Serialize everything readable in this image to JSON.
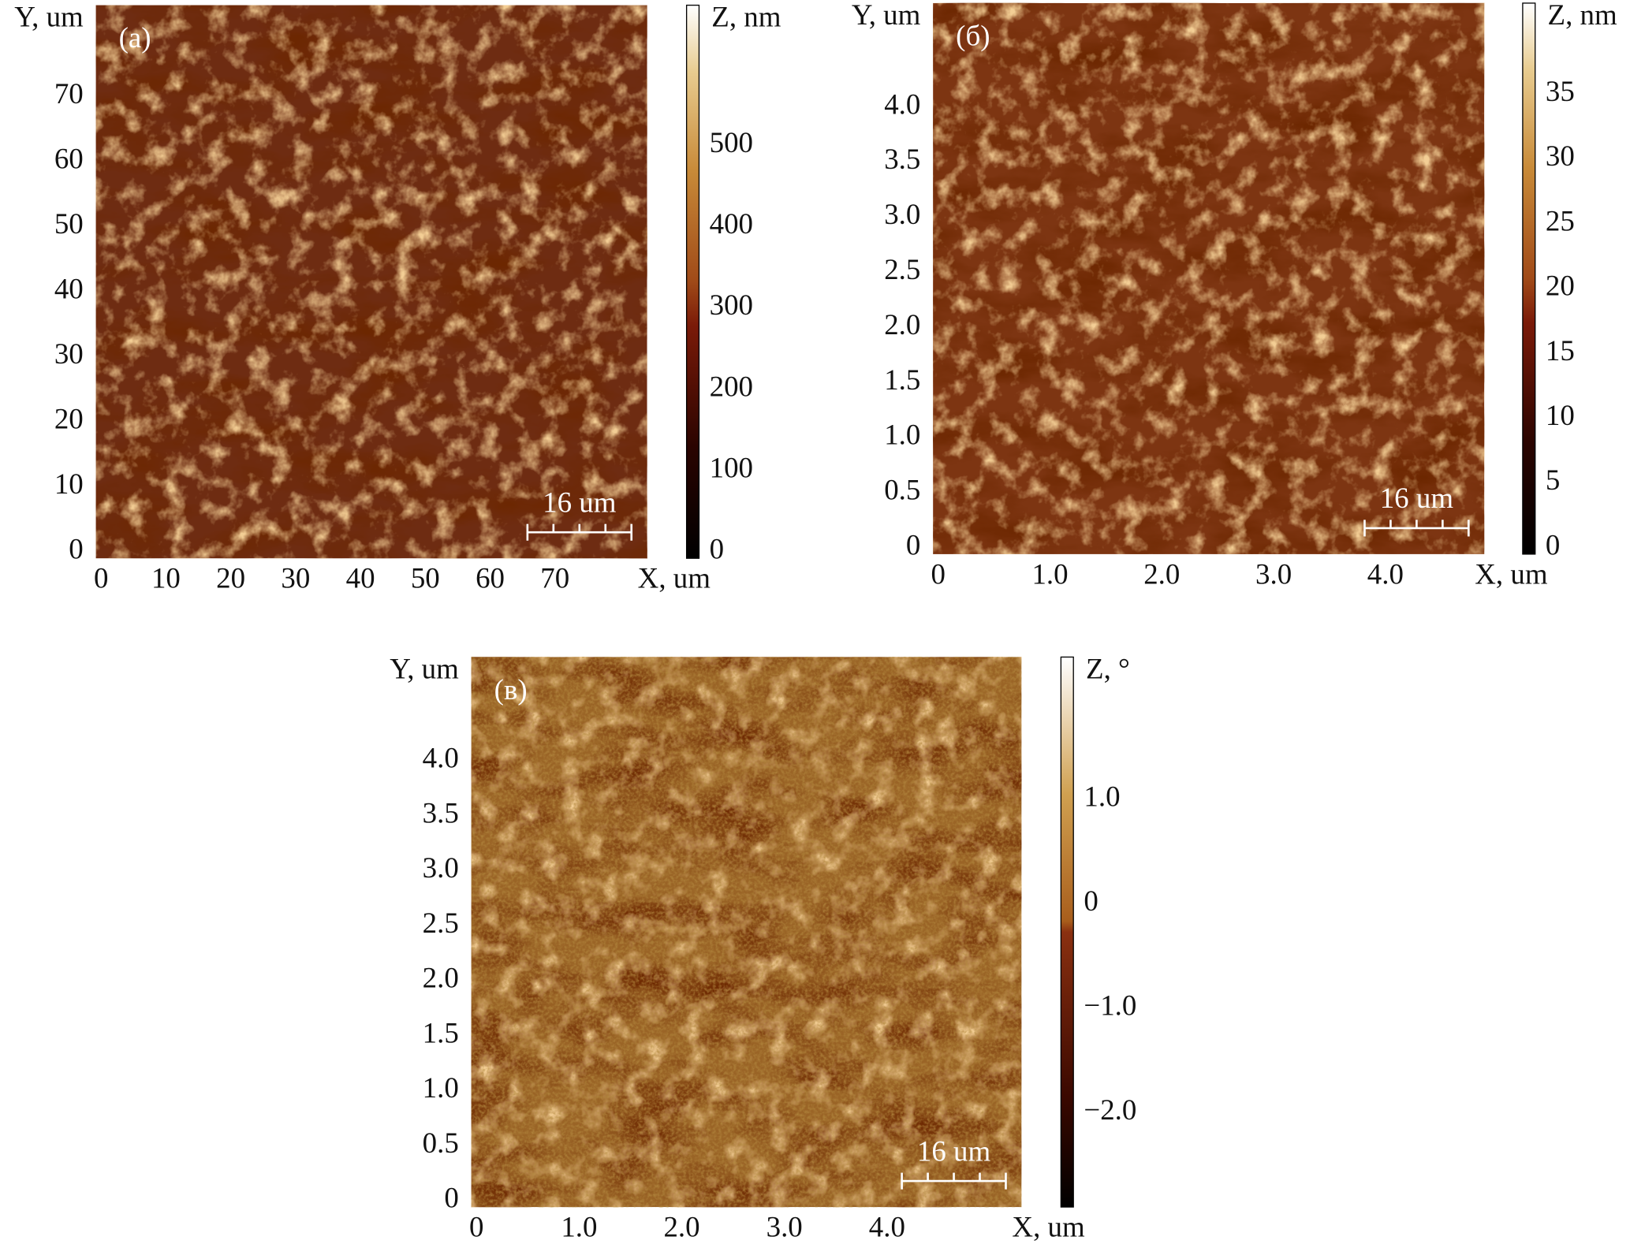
{
  "panels": [
    {
      "label": "(a)",
      "y_title": "Y, um",
      "x_title": "X, um",
      "z_title": "Z, nm",
      "scale_bar": "16 um",
      "xlim": [
        0,
        85
      ],
      "ylim": [
        0,
        85
      ],
      "zlim": [
        0,
        680
      ],
      "xticks": [
        0,
        10,
        20,
        30,
        40,
        50,
        60,
        70
      ],
      "yticks": [
        0,
        10,
        20,
        30,
        40,
        50,
        60,
        70
      ],
      "zticks": [
        0,
        100,
        200,
        300,
        400,
        500
      ]
    },
    {
      "label": "(б)",
      "y_title": "Y, um",
      "x_title": "X, um",
      "z_title": "Z, nm",
      "scale_bar": "16 um",
      "xlim": [
        0,
        4.93
      ],
      "ylim": [
        0,
        5.0
      ],
      "zlim": [
        0,
        42.5
      ],
      "xticks": [
        0,
        {
          "value": 1,
          "label": "1.0"
        },
        {
          "value": 2,
          "label": "2.0"
        },
        {
          "value": 3,
          "label": "3.0"
        },
        {
          "value": 4,
          "label": "4.0"
        }
      ],
      "yticks": [
        0,
        0.5,
        {
          "value": 1,
          "label": "1.0"
        },
        1.5,
        {
          "value": 2,
          "label": "2.0"
        },
        2.5,
        {
          "value": 3,
          "label": "3.0"
        },
        3.5,
        {
          "value": 4,
          "label": "4.0"
        }
      ],
      "zticks": [
        0,
        5,
        10,
        15,
        20,
        25,
        30,
        35
      ]
    },
    {
      "label": "(в)",
      "y_title": "Y, um",
      "x_title": "X, um",
      "z_title": "Z, °",
      "scale_bar": "16 um",
      "xlim": [
        0,
        5.36
      ],
      "ylim": [
        0,
        5.0
      ],
      "zlim": [
        -2.84,
        2.42
      ],
      "xticks": [
        0,
        {
          "value": 1,
          "label": "1.0"
        },
        {
          "value": 2,
          "label": "2.0"
        },
        {
          "value": 3,
          "label": "3.0"
        },
        {
          "value": 4,
          "label": "4.0"
        }
      ],
      "yticks": [
        0,
        0.5,
        {
          "value": 1,
          "label": "1.0"
        },
        1.5,
        {
          "value": 2,
          "label": "2.0"
        },
        2.5,
        {
          "value": 3,
          "label": "3.0"
        },
        3.5,
        {
          "value": 4,
          "label": "4.0"
        }
      ],
      "zticks": [
        {
          "value": -2,
          "label": "−2.0"
        },
        {
          "value": -1,
          "label": "−1.0"
        },
        0,
        {
          "value": 1,
          "label": "1.0"
        }
      ]
    }
  ]
}
